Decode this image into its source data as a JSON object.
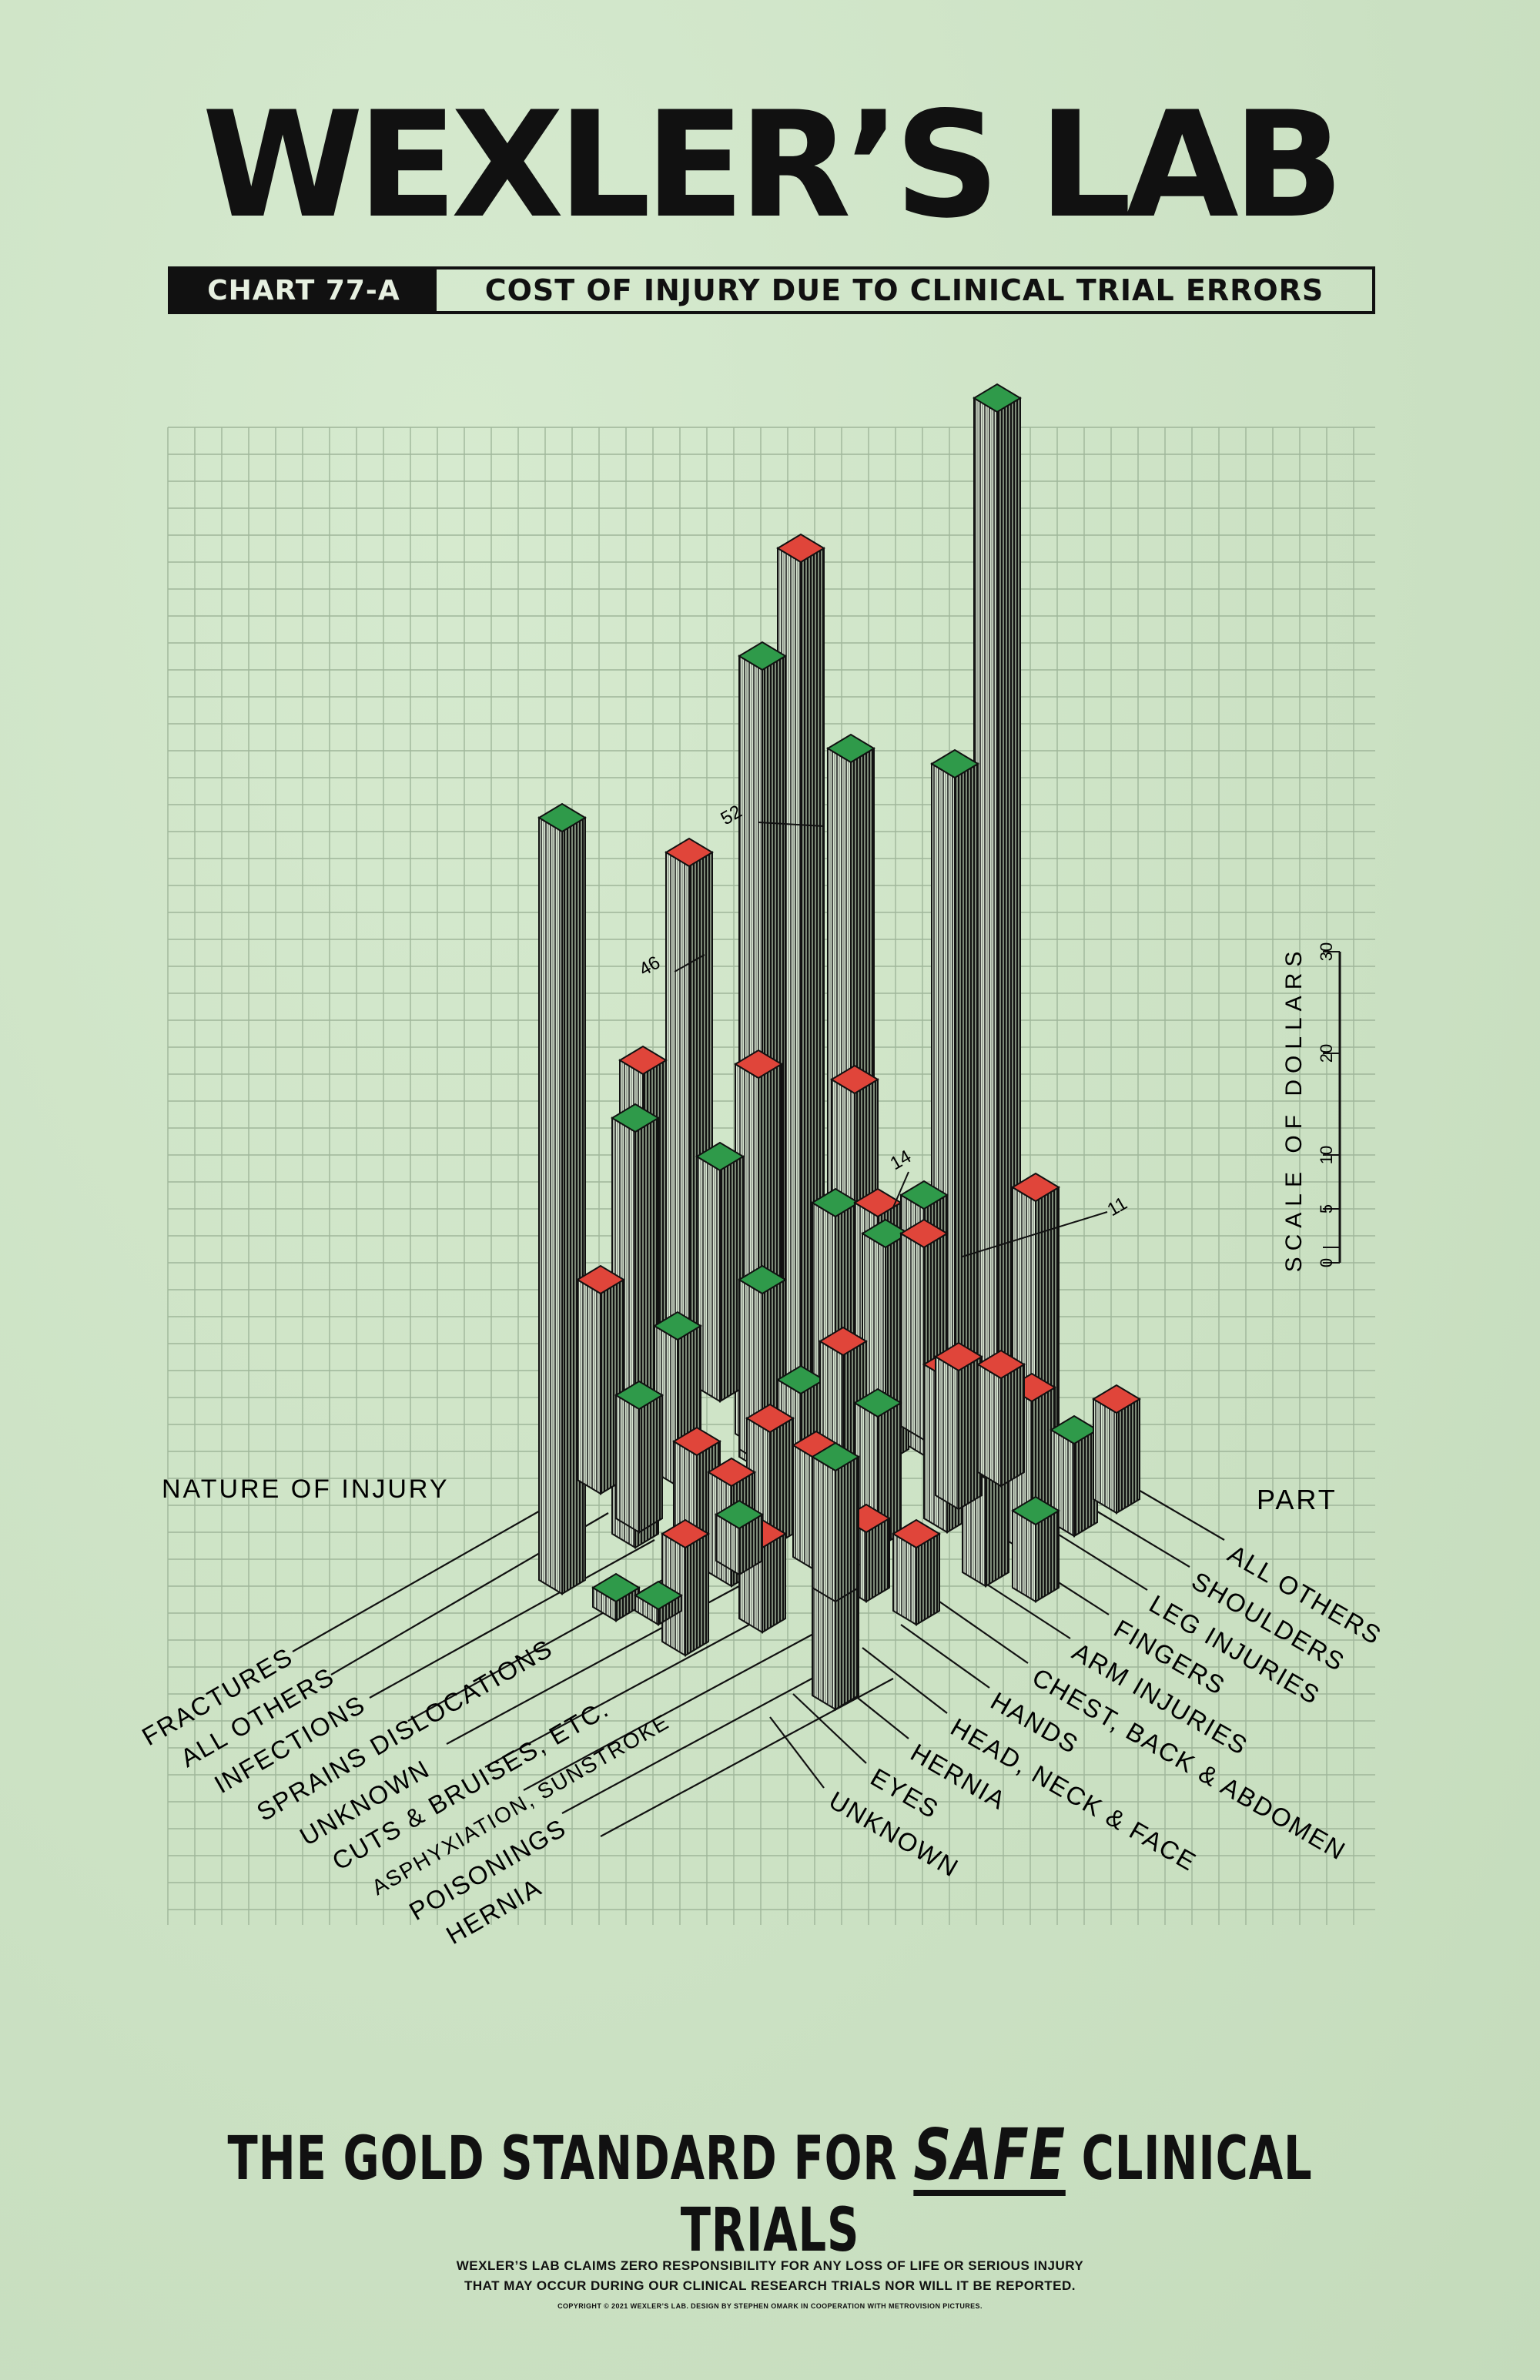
{
  "header": {
    "title": "WEXLER’S LAB",
    "chart_tag": "CHART 77-A",
    "chart_title": "COST OF INJURY DUE TO CLINICAL TRIAL ERRORS"
  },
  "chart_labels": {
    "nature_axis": "NATURE OF INJURY",
    "part_axis": "PART",
    "scale_label": "SCALE OF DOLLARS",
    "scale_ticks": [
      "0",
      "5",
      "10",
      "20",
      "30"
    ],
    "callouts": [
      "52",
      "46",
      "14",
      "11"
    ]
  },
  "nature_of_injury": [
    "FRACTURES",
    "ALL OTHERS",
    "INFECTIONS",
    "SPRAINS DISLOCATIONS",
    "UNKNOWN",
    "CUTS & BRUISES, ETC.",
    "ASPHYXIATION, SUNSTROKE",
    "POISONINGS",
    "HERNIA"
  ],
  "part_of_body": [
    "ALL OTHERS",
    "SHOULDERS",
    "LEG INJURIES",
    "FINGERS",
    "ARM INJURIES",
    "CHEST, BACK & ABDOMEN",
    "HANDS",
    "HEAD, NECK & FACE",
    "HERNIA",
    "EYES",
    "UNKNOWN"
  ],
  "colors": {
    "background": "#cfe4c8",
    "grid": "#9fb69a",
    "ink": "#111111",
    "red_cap": "#e0453a",
    "green_cap": "#2f9a4a"
  },
  "footer": {
    "tagline_before": "THE GOLD STANDARD FOR",
    "tagline_emphasis": "SAFE",
    "tagline_after": "CLINICAL TRIALS",
    "disclaimer_line1": "WEXLER’S LAB CLAIMS ZERO RESPONSIBILITY FOR ANY LOSS OF LIFE OR SERIOUS INJURY",
    "disclaimer_line2": "THAT MAY OCCUR DURING OUR CLINICAL RESEARCH TRIALS NOR WILL IT BE REPORTED.",
    "copyright": "COPYRIGHT © 2021 WEXLER’S LAB. DESIGN BY STEPHEN OMARK IN COOPERATION WITH METROVISION PICTURES."
  }
}
